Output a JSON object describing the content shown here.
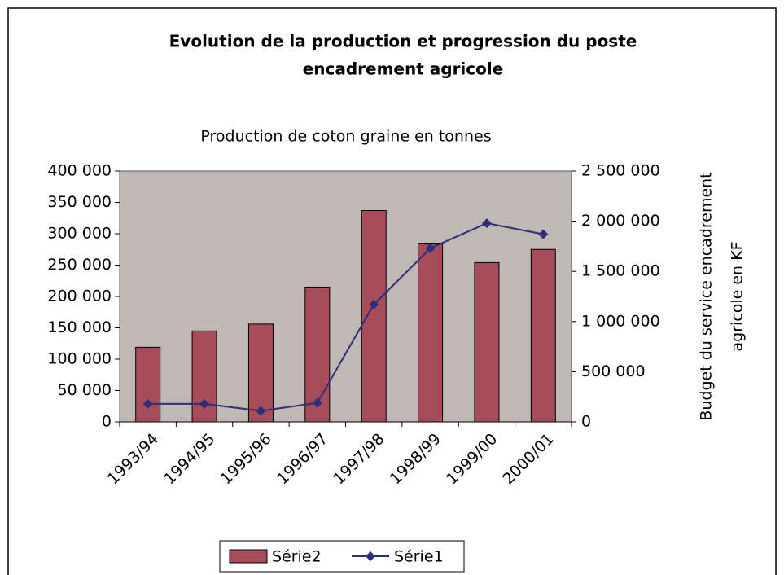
{
  "chart_data": {
    "type": "bar-line",
    "title": [
      "Evolution  de la production et progression du poste",
      "encadrement agricole"
    ],
    "y_label": "Production de coton graine en tonnes",
    "y2_label": [
      "Budget du service encadrement",
      "agricole en KF"
    ],
    "categories": [
      "1993/94",
      "1994/95",
      "1995/96",
      "1996/97",
      "1997/98",
      "1998/99",
      "1999/00",
      "2000/01"
    ],
    "series": [
      {
        "name": "Série2",
        "type": "bar",
        "axis": "y",
        "color": "#a64d5c",
        "values": [
          119000,
          145000,
          156000,
          215000,
          337000,
          285000,
          254000,
          275000
        ]
      },
      {
        "name": "Série1",
        "type": "line",
        "axis": "y2",
        "color": "#2e2e7a",
        "values": [
          180000,
          180000,
          110000,
          190000,
          1170000,
          1730000,
          1980000,
          1870000
        ]
      }
    ],
    "ylim": [
      0,
      400000
    ],
    "yticks": [
      0,
      {
        "value": 50000,
        "label": "50 000"
      },
      {
        "value": 100000,
        "label": "100 000"
      },
      {
        "value": 150000,
        "label": "150 000"
      },
      {
        "value": 200000,
        "label": "200 000"
      },
      {
        "value": 250000,
        "label": "250 000"
      },
      {
        "value": 300000,
        "label": "300 000"
      },
      {
        "value": 350000,
        "label": "350 000"
      },
      {
        "value": 400000,
        "label": "400 000"
      }
    ],
    "y2lim": [
      0,
      2500000
    ],
    "y2ticks": [
      0,
      {
        "value": 500000,
        "label": "500 000"
      },
      {
        "value": 1000000,
        "label": "1 000 000"
      },
      {
        "value": 1500000,
        "label": "1 500 000"
      },
      {
        "value": 2000000,
        "label": "2 000 000"
      },
      {
        "value": 2500000,
        "label": "2 500 000"
      }
    ],
    "plot_background": "#c0b8b4",
    "grid": false,
    "legend": "bottom"
  }
}
